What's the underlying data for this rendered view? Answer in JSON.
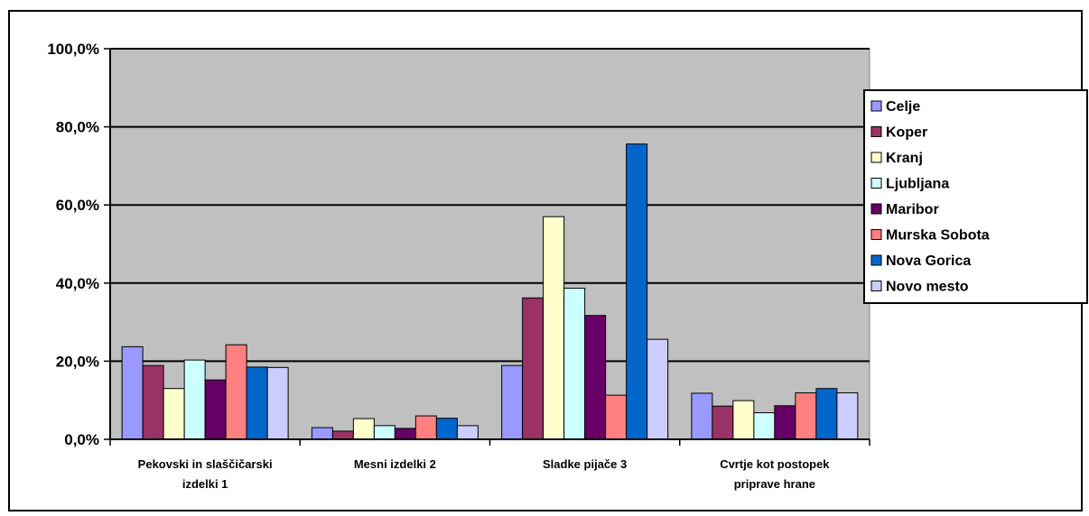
{
  "chart_data": {
    "type": "bar",
    "categories": [
      [
        "Pekovski in slaščičarski",
        "izdelki 1"
      ],
      [
        "Mesni izdelki 2"
      ],
      [
        "Sladke pijače 3"
      ],
      [
        "Cvrtje kot postopek",
        "priprave hrane"
      ]
    ],
    "y_ticks": [
      "0,0%",
      "20,0%",
      "40,0%",
      "60,0%",
      "80,0%",
      "100,0%"
    ],
    "ylim": [
      0,
      100
    ],
    "grid": true,
    "legend_position": "right",
    "plot_background": "#c0c0c0",
    "series": [
      {
        "name": "Celje",
        "color": "#9999ff",
        "values": [
          23.7,
          3.0,
          18.9,
          11.8
        ]
      },
      {
        "name": "Koper",
        "color": "#993366",
        "values": [
          18.9,
          2.1,
          36.2,
          8.5
        ]
      },
      {
        "name": "Kranj",
        "color": "#ffffcc",
        "values": [
          13.0,
          5.3,
          57.0,
          9.9
        ]
      },
      {
        "name": "Ljubljana",
        "color": "#ccffff",
        "values": [
          20.3,
          3.5,
          38.7,
          6.8
        ]
      },
      {
        "name": "Maribor",
        "color": "#660066",
        "values": [
          15.2,
          2.8,
          31.7,
          8.6
        ]
      },
      {
        "name": "Murska Sobota",
        "color": "#ff8080",
        "values": [
          24.2,
          6.0,
          11.3,
          11.9
        ]
      },
      {
        "name": "Nova Gorica",
        "color": "#0066cc",
        "values": [
          18.5,
          5.4,
          75.6,
          13.0
        ]
      },
      {
        "name": "Novo mesto",
        "color": "#ccccff",
        "values": [
          18.4,
          3.5,
          25.6,
          11.9
        ]
      }
    ]
  }
}
